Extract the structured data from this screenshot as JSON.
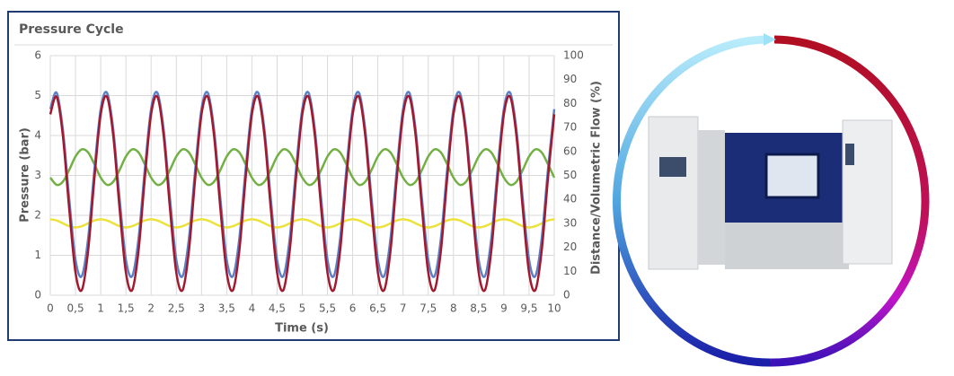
{
  "chart_data": {
    "type": "line",
    "title": "Pressure Cycle",
    "x_label": "Time (s)",
    "y_label": "Pressure (bar)",
    "y2_label": "Distance/Volumetric Flow (%)",
    "x": [
      0,
      0.125,
      0.25,
      0.375,
      0.5,
      0.625,
      0.75,
      0.875,
      1,
      1.125,
      1.25,
      1.375,
      1.5,
      1.625,
      1.75,
      1.875,
      2,
      2.125,
      2.25,
      2.375,
      2.5,
      2.625,
      2.75,
      2.875,
      3,
      3.125,
      3.25,
      3.375,
      3.5,
      3.625,
      3.75,
      3.875,
      4,
      4.125,
      4.25,
      4.375,
      4.5,
      4.625,
      4.75,
      4.875,
      5,
      5.125,
      5.25,
      5.375,
      5.5,
      5.625,
      5.75,
      5.875,
      6,
      6.125,
      6.25,
      6.375,
      6.5,
      6.625,
      6.75,
      6.875,
      7,
      7.125,
      7.25,
      7.375,
      7.5,
      7.625,
      7.75,
      7.875,
      8,
      8.125,
      8.25,
      8.375,
      8.5,
      8.625,
      8.75,
      8.875,
      9,
      9.125,
      9.25,
      9.375,
      9.5,
      9.625,
      9.75,
      9.875,
      10
    ],
    "series": [
      {
        "color": "#5b80c6",
        "values": [
          4.66,
          5.07,
          4.14,
          2.41,
          0.89,
          0.48,
          1.41,
          3.14,
          4.66,
          5.07,
          4.14,
          2.41,
          0.89,
          0.48,
          1.41,
          3.14,
          4.66,
          5.07,
          4.14,
          2.41,
          0.89,
          0.48,
          1.41,
          3.14,
          4.66,
          5.07,
          4.14,
          2.41,
          0.89,
          0.48,
          1.41,
          3.14,
          4.66,
          5.07,
          4.14,
          2.41,
          0.89,
          0.48,
          1.41,
          3.14,
          4.66,
          5.07,
          4.14,
          2.41,
          0.89,
          0.48,
          1.41,
          3.14,
          4.66,
          5.07,
          4.14,
          2.41,
          0.89,
          0.48,
          1.41,
          3.14,
          4.66,
          5.07,
          4.14,
          2.41,
          0.89,
          0.48,
          1.41,
          3.14,
          4.66,
          5.07,
          4.14,
          2.41,
          0.89,
          0.48,
          1.41,
          3.14,
          4.66,
          5.07,
          4.14,
          2.41,
          0.89,
          0.48,
          1.41,
          3.14,
          4.66
        ]
      },
      {
        "color": "#a3182e",
        "values": [
          4.53,
          4.97,
          3.99,
          2.17,
          0.57,
          0.13,
          1.11,
          2.93,
          4.53,
          4.97,
          3.99,
          2.17,
          0.57,
          0.13,
          1.11,
          2.93,
          4.53,
          4.97,
          3.99,
          2.17,
          0.57,
          0.13,
          1.11,
          2.93,
          4.53,
          4.97,
          3.99,
          2.17,
          0.57,
          0.13,
          1.11,
          2.93,
          4.53,
          4.97,
          3.99,
          2.17,
          0.57,
          0.13,
          1.11,
          2.93,
          4.53,
          4.97,
          3.99,
          2.17,
          0.57,
          0.13,
          1.11,
          2.93,
          4.53,
          4.97,
          3.99,
          2.17,
          0.57,
          0.13,
          1.11,
          2.93,
          4.53,
          4.97,
          3.99,
          2.17,
          0.57,
          0.13,
          1.11,
          2.93,
          4.53,
          4.97,
          3.99,
          2.17,
          0.57,
          0.13,
          1.11,
          2.93,
          4.53,
          4.97,
          3.99,
          2.17,
          0.57,
          0.13,
          1.11,
          2.93,
          4.53
        ]
      },
      {
        "color": "#72b043",
        "axis": "y2",
        "values": [
          49.1,
          46.1,
          47.4,
          52.3,
          57.9,
          60.9,
          59.6,
          54.7,
          49.1,
          46.1,
          47.4,
          52.3,
          57.9,
          60.9,
          59.6,
          54.7,
          49.1,
          46.1,
          47.4,
          52.3,
          57.9,
          60.9,
          59.6,
          54.7,
          49.1,
          46.1,
          47.4,
          52.3,
          57.9,
          60.9,
          59.6,
          54.7,
          49.1,
          46.1,
          47.4,
          52.3,
          57.9,
          60.9,
          59.6,
          54.7,
          49.1,
          46.1,
          47.4,
          52.3,
          57.9,
          60.9,
          59.6,
          54.7,
          49.1,
          46.1,
          47.4,
          52.3,
          57.9,
          60.9,
          59.6,
          54.7,
          49.1,
          46.1,
          47.4,
          52.3,
          57.9,
          60.9,
          59.6,
          54.7,
          49.1,
          46.1,
          47.4,
          52.3,
          57.9,
          60.9,
          59.6,
          54.7,
          49.1,
          46.1,
          47.4,
          52.3,
          57.9,
          60.9,
          59.6,
          54.7,
          49.1
        ]
      },
      {
        "color": "#ece23c",
        "axis": "y2",
        "values": [
          31.7,
          31.2,
          30,
          28.8,
          28.3,
          28.8,
          30,
          31.2,
          31.7,
          31.2,
          30,
          28.8,
          28.3,
          28.8,
          30,
          31.2,
          31.7,
          31.2,
          30,
          28.8,
          28.3,
          28.8,
          30,
          31.2,
          31.7,
          31.2,
          30,
          28.8,
          28.3,
          28.8,
          30,
          31.2,
          31.7,
          31.2,
          30,
          28.8,
          28.3,
          28.8,
          30,
          31.2,
          31.7,
          31.2,
          30,
          28.8,
          28.3,
          28.8,
          30,
          31.2,
          31.7,
          31.2,
          30,
          28.8,
          28.3,
          28.8,
          30,
          31.2,
          31.7,
          31.2,
          30,
          28.8,
          28.3,
          28.8,
          30,
          31.2,
          31.7,
          31.2,
          30,
          28.8,
          28.3,
          28.8,
          30,
          31.2,
          31.7,
          31.2,
          30,
          28.8,
          28.3,
          28.8,
          30,
          31.2,
          31.7
        ]
      }
    ],
    "xlim": [
      0,
      10
    ],
    "xticks": [
      0,
      {
        "value": 0.5,
        "label": "0,5"
      },
      1,
      {
        "value": 1.5,
        "label": "1,5"
      },
      2,
      {
        "value": 2.5,
        "label": "2,5"
      },
      3,
      {
        "value": 3.5,
        "label": "3,5"
      },
      4,
      {
        "value": 4.5,
        "label": "4,5"
      },
      5,
      {
        "value": 5.5,
        "label": "5,5"
      },
      6,
      {
        "value": 6.5,
        "label": "6,5"
      },
      7,
      {
        "value": 7.5,
        "label": "7,5"
      },
      8,
      {
        "value": 8.5,
        "label": "8,5"
      },
      9,
      {
        "value": 9.5,
        "label": "9,5"
      },
      10
    ],
    "ylim": [
      0,
      6
    ],
    "yticks": [
      0,
      1,
      2,
      3,
      4,
      5,
      6
    ],
    "y2lim": [
      0,
      100
    ],
    "y2ticks": [
      0,
      10,
      20,
      30,
      40,
      50,
      60,
      70,
      80,
      90,
      100
    ],
    "grid": true
  }
}
